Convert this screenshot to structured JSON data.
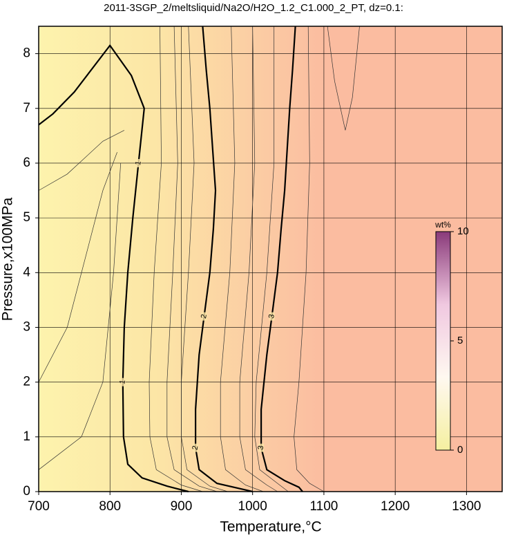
{
  "chart_data": {
    "type": "contour",
    "title": "2011-3SGP_2/meltsliquid/Na2O/H2O_1.2_C1.000_2_PT, dz=0.1:",
    "x_label": "Temperature,°C",
    "y_label": "Pressure,x100MPa",
    "xlim": [
      700,
      1350
    ],
    "ylim": [
      0,
      8.5
    ],
    "xticks": [
      700,
      800,
      900,
      1000,
      1100,
      1200,
      1300
    ],
    "yticks": [
      0,
      1,
      2,
      3,
      4,
      5,
      6,
      7,
      8
    ],
    "grid": true,
    "contours": [
      {
        "level": 1,
        "x": [
          700,
          720,
          750,
          800,
          830,
          845,
          848,
          840,
          832,
          825,
          820,
          818,
          819,
          825,
          845,
          880,
          910
        ],
        "y": [
          6.7,
          6.9,
          7.3,
          8.15,
          7.6,
          7.1,
          7.0,
          6.0,
          5.0,
          4.0,
          3.0,
          2.0,
          1.0,
          0.5,
          0.25,
          0.1,
          0
        ]
      },
      {
        "level": 2,
        "x": [
          930,
          935,
          940,
          948,
          945,
          940,
          932,
          925,
          920,
          920,
          925,
          950,
          990,
          1000
        ],
        "y": [
          8.5,
          7.7,
          7.0,
          5.5,
          4.8,
          4.0,
          3.2,
          2.5,
          1.5,
          0.8,
          0.4,
          0.15,
          0.03,
          0
        ]
      },
      {
        "level": 3,
        "x": [
          1060,
          1056,
          1052,
          1045,
          1040,
          1035,
          1027,
          1020,
          1012,
          1012,
          1020,
          1045,
          1065,
          1070
        ],
        "y": [
          8.5,
          7.7,
          7.0,
          5.5,
          4.8,
          4.0,
          3.2,
          2.5,
          1.5,
          0.8,
          0.4,
          0.2,
          0.08,
          0
        ]
      }
    ],
    "thin_contours": [
      {
        "x": [
          870,
          872,
          862,
          855,
          856,
          865,
          900,
          930
        ],
        "y": [
          8.5,
          6,
          4,
          2,
          1,
          0.4,
          0.12,
          0
        ]
      },
      {
        "x": [
          890,
          895,
          888,
          880,
          880,
          890,
          925,
          950
        ],
        "y": [
          8.5,
          6,
          4,
          2,
          1,
          0.4,
          0.1,
          0
        ]
      },
      {
        "x": [
          910,
          918,
          910,
          900,
          900,
          908,
          940,
          965
        ],
        "y": [
          8.5,
          6,
          4,
          2,
          1,
          0.4,
          0.1,
          0
        ]
      },
      {
        "x": [
          970,
          975,
          968,
          955,
          955,
          962,
          990,
          1015
        ],
        "y": [
          8.5,
          6,
          4,
          2,
          1,
          0.4,
          0.12,
          0
        ]
      },
      {
        "x": [
          1000,
          1003,
          995,
          982,
          982,
          990,
          1020,
          1035
        ],
        "y": [
          8.5,
          6,
          4,
          2,
          1,
          0.4,
          0.12,
          0
        ]
      },
      {
        "x": [
          1030,
          1030,
          1020,
          1005,
          1003,
          1010,
          1035,
          1050
        ],
        "y": [
          8.5,
          6,
          4,
          2,
          1,
          0.4,
          0.15,
          0
        ]
      },
      {
        "x": [
          1078,
          1080,
          1075,
          1065,
          1058,
          1062,
          1080,
          1100
        ],
        "y": [
          8.5,
          6,
          4,
          2,
          1,
          0.4,
          0.15,
          0
        ]
      },
      {
        "x": [
          1105,
          1115,
          1130,
          1140,
          1150
        ],
        "y": [
          8.5,
          7.5,
          6.6,
          7.2,
          8.5
        ]
      },
      {
        "x": [
          700,
          740,
          790,
          820
        ],
        "y": [
          5.5,
          5.8,
          6.4,
          6.6
        ]
      },
      {
        "x": [
          700,
          740,
          770,
          790,
          810
        ],
        "y": [
          2.0,
          3,
          4.5,
          5.5,
          6.2
        ]
      },
      {
        "x": [
          700,
          760,
          790,
          805,
          815
        ],
        "y": [
          0.4,
          1,
          2,
          4,
          6
        ]
      }
    ],
    "colorbar": {
      "label": "wt%",
      "lim": [
        0,
        10
      ],
      "ticks": [
        0,
        5,
        10
      ],
      "colors": [
        "#f5f0a0",
        "#fff8f0",
        "#f0c8e0",
        "#8a3a7a"
      ]
    }
  }
}
